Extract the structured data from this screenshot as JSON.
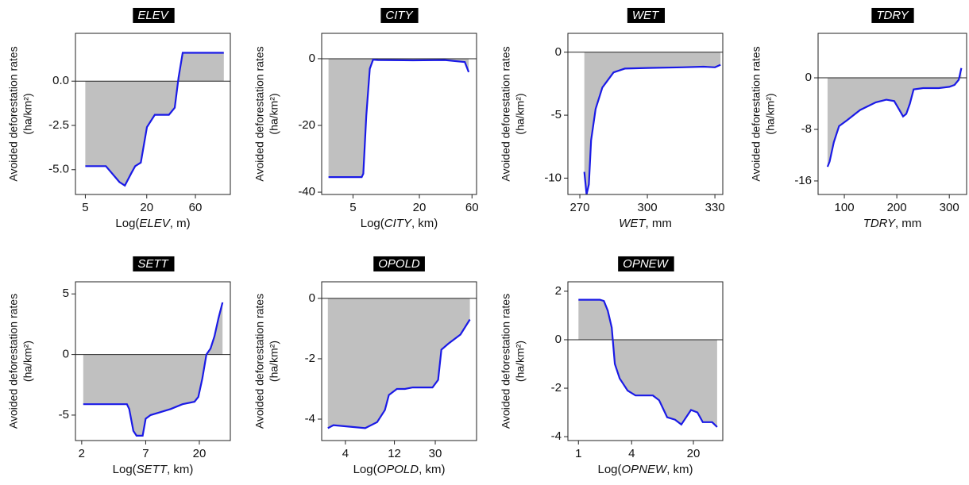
{
  "chart_data": [
    {
      "type": "area",
      "title": "ELEV",
      "xlabel": "Log(ELEV, m)",
      "ylabel": [
        "Avoided deforestation rates",
        "(ha/km²)"
      ],
      "xscale": "log",
      "x": [
        5,
        7.95,
        10.8,
        12.2,
        14.1,
        15.4,
        17.5,
        20.1,
        24,
        33,
        37.6,
        41,
        45,
        114
      ],
      "values": [
        -4.8,
        -4.8,
        -5.7,
        -5.9,
        -5.2,
        -4.8,
        -4.6,
        -2.6,
        -1.9,
        -1.9,
        -1.5,
        0.2,
        1.6,
        1.6
      ],
      "xlim": [
        4,
        132
      ],
      "ylim": [
        -6.4,
        2.7
      ],
      "xticks": [
        5,
        20,
        60
      ],
      "yticks": [
        {
          "value": 0,
          "label": "0.0"
        },
        {
          "value": -2.5,
          "label": "-2.5"
        },
        {
          "value": -5,
          "label": "-5.0"
        }
      ],
      "color": "#1a1ae6",
      "fill": "#c0c0c0"
    },
    {
      "type": "area",
      "title": "CITY",
      "xlabel": "Log(CITY, km)",
      "ylabel": [
        "Avoided deforestation rates",
        "(ha/km²)"
      ],
      "xscale": "log",
      "x": [
        3.0,
        6.0,
        6.2,
        6.6,
        7.1,
        7.6,
        8.4,
        17.5,
        34,
        51.6,
        56
      ],
      "values": [
        -35.5,
        -35.5,
        -34.5,
        -17,
        -3,
        -0.3,
        -0.4,
        -0.5,
        -0.4,
        -1,
        -4
      ],
      "xlim": [
        2.6,
        66
      ],
      "ylim": [
        -40.7,
        7.6
      ],
      "xticks": [
        5,
        20,
        60
      ],
      "yticks": [
        0,
        -20,
        -40
      ],
      "color": "#1a1ae6",
      "fill": "#c0c0c0"
    },
    {
      "type": "area",
      "title": "WET",
      "xlabel": "WET, mm",
      "ylabel": [
        "Avoided deforestation rates",
        "(ha/km²)"
      ],
      "xscale": "linear",
      "x": [
        272,
        273,
        274,
        275,
        277,
        280,
        285,
        290,
        300,
        315,
        325,
        330,
        332.5
      ],
      "values": [
        -9.5,
        -11.3,
        -10.5,
        -7,
        -4.5,
        -2.8,
        -1.6,
        -1.3,
        -1.25,
        -1.2,
        -1.15,
        -1.2,
        -1.0
      ],
      "xlim": [
        264.7,
        333.5
      ],
      "ylim": [
        -11.3,
        1.5
      ],
      "xticks": [
        270,
        300,
        330
      ],
      "yticks": [
        0,
        -5,
        -10
      ],
      "color": "#1a1ae6",
      "fill": "#c0c0c0"
    },
    {
      "type": "area",
      "title": "TDRY",
      "xlabel": "TDRY, mm",
      "ylabel": [
        "Avoided deforestation rates",
        "(ha/km²)"
      ],
      "xscale": "linear",
      "x": [
        68,
        72,
        80,
        90,
        105,
        130,
        160,
        180,
        195,
        205,
        212,
        218,
        225,
        232,
        250,
        280,
        300,
        310,
        318,
        323
      ],
      "values": [
        -13.8,
        -13,
        -10,
        -7.5,
        -6.6,
        -5,
        -3.8,
        -3.4,
        -3.6,
        -5,
        -6,
        -5.6,
        -4,
        -1.8,
        -1.6,
        -1.6,
        -1.4,
        -1.1,
        -0.3,
        1.5
      ],
      "xlim": [
        50,
        333
      ],
      "ylim": [
        -18.1,
        6.9
      ],
      "xticks": [
        100,
        200,
        300
      ],
      "yticks": [
        0,
        -8,
        -16
      ],
      "color": "#1a1ae6",
      "fill": "#c0c0c0"
    },
    {
      "type": "area",
      "title": "SETT",
      "xlabel": "Log(SETT, km)",
      "ylabel": [
        "Avoided deforestation rates",
        "(ha/km²)"
      ],
      "xscale": "log",
      "x": [
        2.06,
        4.85,
        5.07,
        5.5,
        5.85,
        6.6,
        7.0,
        7.7,
        9.0,
        11.4,
        14.4,
        18.2,
        19.6,
        21.2,
        23,
        24.9,
        26.9,
        29.1,
        31.5
      ],
      "values": [
        -4.1,
        -4.1,
        -4.5,
        -6.3,
        -6.7,
        -6.7,
        -5.3,
        -5,
        -4.8,
        -4.5,
        -4.1,
        -3.9,
        -3.5,
        -2,
        0,
        0.5,
        1.5,
        3,
        4.3
      ],
      "xlim": [
        1.77,
        36.7
      ],
      "ylim": [
        -7.1,
        6
      ],
      "xticks": [
        2,
        7,
        20
      ],
      "yticks": [
        5,
        0,
        -5
      ],
      "color": "#1a1ae6",
      "fill": "#c0c0c0"
    },
    {
      "type": "area",
      "title": "OPOLD",
      "xlabel": "Log(OPOLD, km)",
      "ylabel": [
        "Avoided deforestation rates",
        "(ha/km²)"
      ],
      "xscale": "log",
      "x": [
        2.7,
        3.06,
        4.37,
        6.24,
        8.14,
        9.7,
        10.6,
        12.7,
        15.2,
        18.1,
        28.2,
        32,
        34.4,
        40.3,
        52.7,
        65.2
      ],
      "values": [
        -4.3,
        -4.2,
        -4.25,
        -4.3,
        -4.1,
        -3.7,
        -3.2,
        -3.0,
        -3.0,
        -2.95,
        -2.95,
        -2.7,
        -1.7,
        -1.5,
        -1.2,
        -0.7
      ],
      "xlim": [
        2.35,
        75.7
      ],
      "ylim": [
        -4.71,
        0.55
      ],
      "xticks": [
        4,
        12,
        30
      ],
      "yticks": [
        0,
        -2,
        -4
      ],
      "color": "#1a1ae6",
      "fill": "#c0c0c0"
    },
    {
      "type": "area",
      "title": "OPNEW",
      "xlabel": "Log(OPNEW, km)",
      "ylabel": [
        "Avoided deforestation rates",
        "(ha/km²)"
      ],
      "xscale": "log",
      "x": [
        1,
        1.75,
        1.94,
        2.15,
        2.38,
        2.58,
        2.93,
        3.6,
        4.42,
        6.96,
        8.2,
        10.1,
        12.4,
        14.6,
        18.8,
        22.2,
        25.5,
        32.6,
        37.1
      ],
      "values": [
        1.65,
        1.65,
        1.6,
        1.2,
        0.5,
        -1.0,
        -1.6,
        -2.1,
        -2.3,
        -2.3,
        -2.5,
        -3.2,
        -3.3,
        -3.5,
        -2.9,
        -3.0,
        -3.4,
        -3.4,
        -3.6
      ],
      "xlim": [
        0.76,
        43
      ],
      "ylim": [
        -4.16,
        2.39
      ],
      "xticks": [
        1,
        4,
        20
      ],
      "yticks": [
        2,
        0,
        -2,
        -4
      ],
      "color": "#1a1ae6",
      "fill": "#c0c0c0"
    }
  ]
}
